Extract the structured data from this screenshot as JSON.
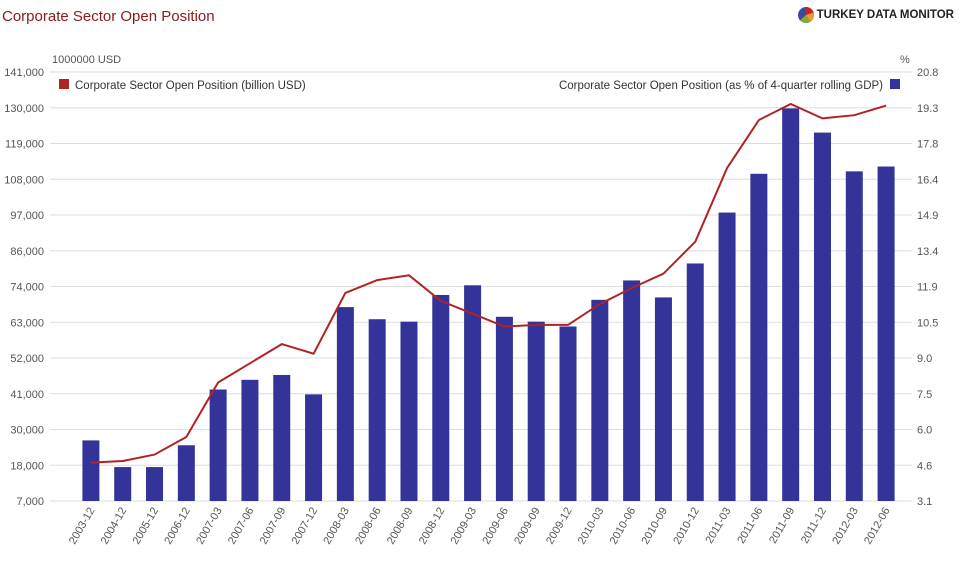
{
  "header": {
    "title": "Corporate Sector Open Position",
    "brand": "TURKEY DATA MONITOR"
  },
  "chart_data": {
    "type": "bar",
    "categories": [
      "2003-12",
      "2004-12",
      "2005-12",
      "2006-12",
      "2007-03",
      "2007-06",
      "2007-09",
      "2007-12",
      "2008-03",
      "2008-06",
      "2008-09",
      "2008-12",
      "2009-03",
      "2009-06",
      "2009-09",
      "2009-12",
      "2010-03",
      "2010-06",
      "2010-09",
      "2010-12",
      "2011-03",
      "2011-06",
      "2011-09",
      "2011-12",
      "2012-03",
      "2012-06"
    ],
    "left_axis": {
      "unit_label": "1000000 USD",
      "ticks": [
        "141,000",
        "130,000",
        "119,000",
        "108,000",
        "97,000",
        "86,000",
        "74,000",
        "63,000",
        "52,000",
        "41,000",
        "30,000",
        "18,000",
        "7,000"
      ],
      "range": [
        7000,
        141000
      ]
    },
    "right_axis": {
      "unit_label": "%",
      "ticks": [
        "20.8",
        "19.3",
        "17.8",
        "16.4",
        "14.9",
        "13.4",
        "11.9",
        "10.5",
        "9.0",
        "7.5",
        "6.0",
        "4.6",
        "3.1"
      ],
      "range": [
        3.1,
        20.8
      ]
    },
    "series": [
      {
        "name": "Corporate Sector Open Position (as % of 4-quarter rolling GDP)",
        "type": "bar",
        "axis": "right",
        "color": "#333399",
        "values": [
          5.6,
          4.5,
          4.5,
          5.4,
          7.7,
          8.1,
          8.3,
          7.5,
          11.1,
          10.6,
          10.5,
          11.6,
          12.0,
          10.7,
          10.5,
          10.3,
          11.4,
          12.2,
          11.5,
          12.9,
          15.0,
          16.6,
          19.3,
          18.3,
          16.7,
          16.9
        ]
      },
      {
        "name": "Corporate Sector Open Position (billion USD)",
        "type": "line",
        "axis": "left",
        "color": "#b22222",
        "values": [
          19000,
          19500,
          21500,
          27000,
          44000,
          50000,
          56000,
          53000,
          72000,
          76000,
          77500,
          69500,
          65500,
          61500,
          62000,
          62000,
          68500,
          73500,
          78000,
          88000,
          111000,
          126000,
          131000,
          126500,
          127500,
          130500
        ]
      }
    ],
    "legend": {
      "left": "Corporate Sector Open Position (billion USD)",
      "right": "Corporate Sector Open Position (as % of 4-quarter rolling GDP)"
    },
    "grid": true
  }
}
